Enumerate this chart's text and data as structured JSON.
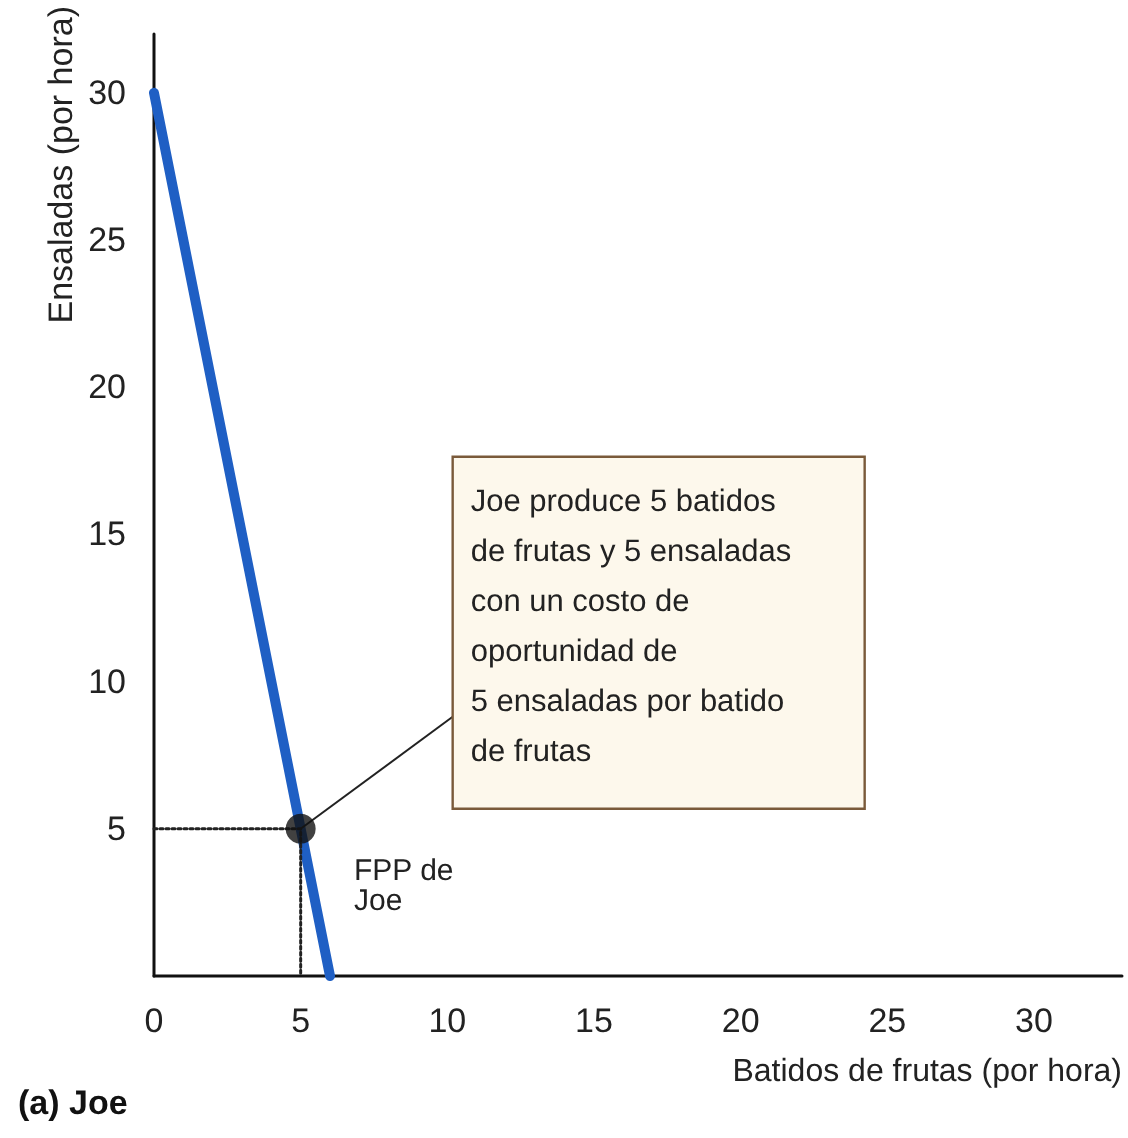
{
  "chart_data": {
    "type": "line",
    "title": "(a) Joe",
    "xlabel": "Batidos de frutas (por hora)",
    "ylabel": "Ensaladas (por hora)",
    "xlim": [
      0,
      33
    ],
    "xticks": [
      0,
      5,
      10,
      15,
      20,
      25,
      30
    ],
    "ylim": [
      0,
      32
    ],
    "yticks": [
      5,
      10,
      15,
      20,
      25,
      30
    ],
    "grid": false,
    "series": [
      {
        "name": "FPP de Joe",
        "color": "#1f5fc4",
        "x": [
          0,
          6
        ],
        "values": [
          30,
          0
        ],
        "marker": "none",
        "line_style": "solid"
      },
      {
        "color": "#222222",
        "x": [
          0,
          5,
          5
        ],
        "values": [
          5,
          5,
          0
        ],
        "marker": "none",
        "line_style": "dotted"
      },
      {
        "type": "scatter",
        "color": "#111111",
        "x": [
          5
        ],
        "values": [
          5
        ],
        "marker": "circle"
      }
    ],
    "annotations": [
      {
        "text": "Joe produce 5 batidos\nde frutas y 5 ensaladas\ncon un costo de\noportunidad de\n5 ensaladas por batido\nde frutas",
        "x": 5,
        "y": 5
      }
    ]
  }
}
